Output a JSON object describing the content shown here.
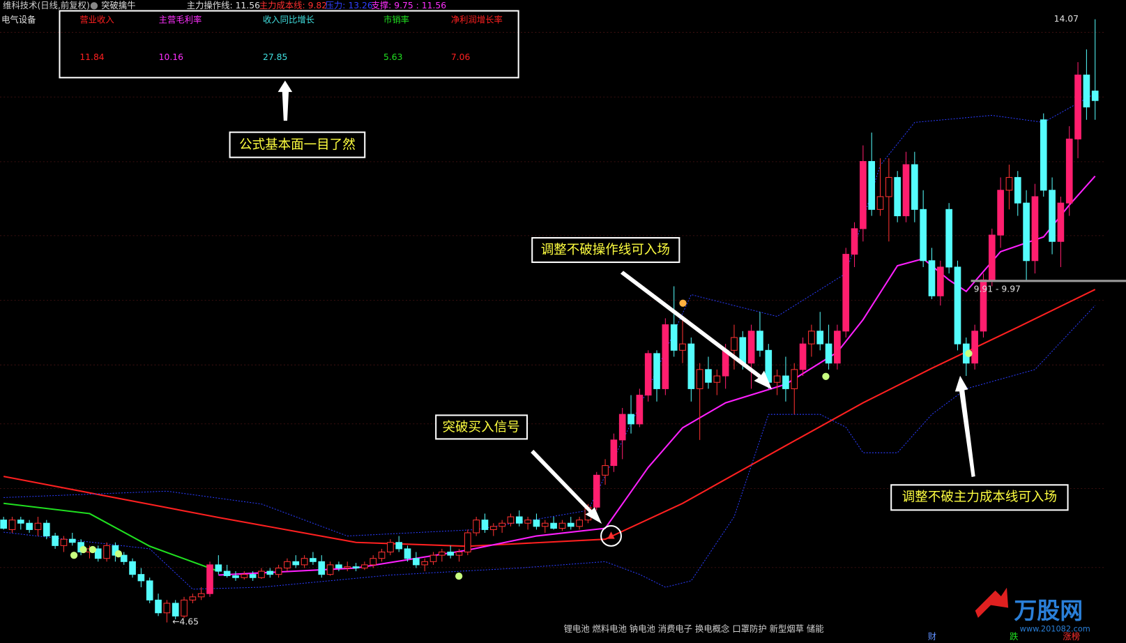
{
  "header": {
    "stock": "维科技术(日线,前复权)",
    "indicator": "突破擒牛",
    "op_line": "主力操作线: 11.56",
    "cost_line": "主力成本线: 9.82",
    "pressure": "压力: 13.26",
    "support": "支撑: 9.75 : 11.56",
    "sector": "电气设备"
  },
  "info_table": {
    "labels": [
      "营业收入",
      "主营毛利率",
      "收入同比增长",
      "市销率",
      "净利润增长率"
    ],
    "values": [
      "11.84",
      "10.16",
      "27.85",
      "5.63",
      "7.06"
    ]
  },
  "callouts": [
    "公式基本面一目了然",
    "调整不破操作线可入场",
    "突破买入信号",
    "调整不破主力成本线可入场"
  ],
  "range_label": "9.91 - 9.97",
  "concepts": "锂电池 燃料电池 钠电池 消费电子 换电概念 口罩防护 新型烟草 储能",
  "footer": {
    "a": "财",
    "b": "跌",
    "c": "涨榜",
    "watermark": "万股网",
    "url": "www.201082.com"
  },
  "chart_data": {
    "type": "candlestick",
    "ylim": [
      4.33,
      14.37
    ],
    "high_label": 14.07,
    "low_label": "←4.65",
    "up_color": "#ff3232",
    "up_fill": "#ff1e6e",
    "down_color": "#54fcfc",
    "candles": [
      [
        6.25,
        6.3,
        6.1,
        6.12
      ],
      [
        6.1,
        6.3,
        6.05,
        6.25
      ],
      [
        6.25,
        6.3,
        6.1,
        6.2
      ],
      [
        6.2,
        6.25,
        6.05,
        6.1
      ],
      [
        6.1,
        6.3,
        6.0,
        6.2
      ],
      [
        6.2,
        6.25,
        5.95,
        6.0
      ],
      [
        6.0,
        6.05,
        5.8,
        5.85
      ],
      [
        5.85,
        6.0,
        5.75,
        5.95
      ],
      [
        5.95,
        6.05,
        5.85,
        5.9
      ],
      [
        5.9,
        5.95,
        5.7,
        5.75
      ],
      [
        5.75,
        5.85,
        5.65,
        5.8
      ],
      [
        5.8,
        5.85,
        5.6,
        5.65
      ],
      [
        5.65,
        5.9,
        5.6,
        5.85
      ],
      [
        5.85,
        5.9,
        5.6,
        5.7
      ],
      [
        5.7,
        5.75,
        5.55,
        5.6
      ],
      [
        5.6,
        5.65,
        5.35,
        5.4
      ],
      [
        5.4,
        5.5,
        5.2,
        5.3
      ],
      [
        5.3,
        5.35,
        4.95,
        5.0
      ],
      [
        5.0,
        5.1,
        4.75,
        4.8
      ],
      [
        4.8,
        5.0,
        4.65,
        4.95
      ],
      [
        4.95,
        5.0,
        4.7,
        4.75
      ],
      [
        4.75,
        5.05,
        4.72,
        5.0
      ],
      [
        5.0,
        5.1,
        4.95,
        5.05
      ],
      [
        5.05,
        5.2,
        5.0,
        5.1
      ],
      [
        5.1,
        5.6,
        5.05,
        5.55
      ],
      [
        5.55,
        5.7,
        5.4,
        5.45
      ],
      [
        5.45,
        5.55,
        5.35,
        5.38
      ],
      [
        5.38,
        5.45,
        5.3,
        5.35
      ],
      [
        5.35,
        5.45,
        5.32,
        5.4
      ],
      [
        5.4,
        5.45,
        5.3,
        5.35
      ],
      [
        5.35,
        5.5,
        5.33,
        5.45
      ],
      [
        5.45,
        5.5,
        5.35,
        5.4
      ],
      [
        5.4,
        5.55,
        5.35,
        5.5
      ],
      [
        5.5,
        5.65,
        5.45,
        5.6
      ],
      [
        5.6,
        5.7,
        5.5,
        5.55
      ],
      [
        5.55,
        5.7,
        5.5,
        5.65
      ],
      [
        5.65,
        5.75,
        5.55,
        5.6
      ],
      [
        5.6,
        5.7,
        5.35,
        5.4
      ],
      [
        5.4,
        5.6,
        5.38,
        5.55
      ],
      [
        5.55,
        5.6,
        5.45,
        5.5
      ],
      [
        5.5,
        5.6,
        5.45,
        5.52
      ],
      [
        5.52,
        5.58,
        5.45,
        5.5
      ],
      [
        5.5,
        5.6,
        5.47,
        5.55
      ],
      [
        5.55,
        5.7,
        5.5,
        5.65
      ],
      [
        5.65,
        5.8,
        5.6,
        5.75
      ],
      [
        5.75,
        5.95,
        5.7,
        5.9
      ],
      [
        5.9,
        6.0,
        5.75,
        5.8
      ],
      [
        5.8,
        5.85,
        5.6,
        5.65
      ],
      [
        5.65,
        5.75,
        5.5,
        5.55
      ],
      [
        5.55,
        5.65,
        5.45,
        5.6
      ],
      [
        5.6,
        5.75,
        5.55,
        5.7
      ],
      [
        5.7,
        5.8,
        5.6,
        5.75
      ],
      [
        5.75,
        5.85,
        5.65,
        5.7
      ],
      [
        5.7,
        5.8,
        5.6,
        5.75
      ],
      [
        5.75,
        6.1,
        5.7,
        6.05
      ],
      [
        6.05,
        6.3,
        6.0,
        6.25
      ],
      [
        6.25,
        6.35,
        6.05,
        6.1
      ],
      [
        6.1,
        6.2,
        6.0,
        6.15
      ],
      [
        6.15,
        6.25,
        6.05,
        6.2
      ],
      [
        6.2,
        6.35,
        6.15,
        6.3
      ],
      [
        6.3,
        6.4,
        6.15,
        6.2
      ],
      [
        6.2,
        6.3,
        6.1,
        6.25
      ],
      [
        6.25,
        6.35,
        6.1,
        6.15
      ],
      [
        6.15,
        6.25,
        6.05,
        6.2
      ],
      [
        6.2,
        6.3,
        6.1,
        6.12
      ],
      [
        6.12,
        6.25,
        6.08,
        6.2
      ],
      [
        6.2,
        6.3,
        6.1,
        6.15
      ],
      [
        6.15,
        6.3,
        6.1,
        6.25
      ],
      [
        6.25,
        6.5,
        6.2,
        6.45
      ],
      [
        6.45,
        7.0,
        6.4,
        6.95
      ],
      [
        6.95,
        7.2,
        6.8,
        7.1
      ],
      [
        7.1,
        7.6,
        7.0,
        7.5
      ],
      [
        7.5,
        8.0,
        7.2,
        7.9
      ],
      [
        7.9,
        8.2,
        7.6,
        7.75
      ],
      [
        7.75,
        8.3,
        7.7,
        8.2
      ],
      [
        8.2,
        8.9,
        8.1,
        8.85
      ],
      [
        8.85,
        8.9,
        8.1,
        8.3
      ],
      [
        8.3,
        9.4,
        8.2,
        9.3
      ],
      [
        9.3,
        9.9,
        8.8,
        8.9
      ],
      [
        8.9,
        9.4,
        8.7,
        9.0
      ],
      [
        9.0,
        9.1,
        8.1,
        8.3
      ],
      [
        8.3,
        8.7,
        7.5,
        8.6
      ],
      [
        8.6,
        8.8,
        8.3,
        8.4
      ],
      [
        8.4,
        8.6,
        8.2,
        8.5
      ],
      [
        8.5,
        9.0,
        8.3,
        8.9
      ],
      [
        8.9,
        9.3,
        8.6,
        9.1
      ],
      [
        9.1,
        9.2,
        8.6,
        8.7
      ],
      [
        8.7,
        9.3,
        8.3,
        9.2
      ],
      [
        9.2,
        9.5,
        8.8,
        8.9
      ],
      [
        8.9,
        9.0,
        8.3,
        8.4
      ],
      [
        8.4,
        8.6,
        8.2,
        8.5
      ],
      [
        8.5,
        8.8,
        8.1,
        8.3
      ],
      [
        8.3,
        8.7,
        7.9,
        8.6
      ],
      [
        8.6,
        9.1,
        8.5,
        9.0
      ],
      [
        9.0,
        9.3,
        8.8,
        9.2
      ],
      [
        9.2,
        9.5,
        8.9,
        9.0
      ],
      [
        9.0,
        9.3,
        8.6,
        8.7
      ],
      [
        8.7,
        9.3,
        8.6,
        9.2
      ],
      [
        9.2,
        10.5,
        9.1,
        10.4
      ],
      [
        10.4,
        10.9,
        10.2,
        10.8
      ],
      [
        10.8,
        12.1,
        10.6,
        11.85
      ],
      [
        11.85,
        12.3,
        11.0,
        11.1
      ],
      [
        11.1,
        11.9,
        11.0,
        11.3
      ],
      [
        11.3,
        11.9,
        10.6,
        11.6
      ],
      [
        11.6,
        11.7,
        10.9,
        11.0
      ],
      [
        11.0,
        12.0,
        10.9,
        11.8
      ],
      [
        11.8,
        12.0,
        10.9,
        11.1
      ],
      [
        11.1,
        11.4,
        10.2,
        10.3
      ],
      [
        10.3,
        10.5,
        9.7,
        9.75
      ],
      [
        9.75,
        10.3,
        9.6,
        10.2
      ],
      [
        11.1,
        11.2,
        10.1,
        10.2
      ],
      [
        10.2,
        10.3,
        8.9,
        9.0
      ],
      [
        9.0,
        9.1,
        8.5,
        8.7
      ],
      [
        8.7,
        9.3,
        8.6,
        9.2
      ],
      [
        9.2,
        10.1,
        9.1,
        10.0
      ],
      [
        10.0,
        10.8,
        9.9,
        10.7
      ],
      [
        10.7,
        11.6,
        10.5,
        11.4
      ],
      [
        11.4,
        11.8,
        11.1,
        11.6
      ],
      [
        11.6,
        11.7,
        11.0,
        11.2
      ],
      [
        11.2,
        11.4,
        10.0,
        10.3
      ],
      [
        10.3,
        11.5,
        10.1,
        11.3
      ],
      [
        12.5,
        12.6,
        11.3,
        11.4
      ],
      [
        11.4,
        11.6,
        10.4,
        10.6
      ],
      [
        10.6,
        11.3,
        10.2,
        11.2
      ],
      [
        11.2,
        12.4,
        11.0,
        12.2
      ],
      [
        12.2,
        13.4,
        11.9,
        13.2
      ],
      [
        13.2,
        13.6,
        12.5,
        12.7
      ],
      [
        12.95,
        14.07,
        12.5,
        12.8
      ]
    ],
    "lines": [
      {
        "name": "cost",
        "color": "#ff2020",
        "width": 2,
        "x": [
          0,
          25,
          41,
          54,
          70,
          79,
          91,
          100,
          108,
          118,
          127
        ],
        "values": [
          6.93,
          6.29,
          5.9,
          5.84,
          5.95,
          6.51,
          7.41,
          8.08,
          8.62,
          9.26,
          9.85
        ]
      },
      {
        "name": "op",
        "color": "#ff20ff",
        "width": 2,
        "x": [
          25,
          41,
          54,
          62,
          70,
          75,
          79,
          84,
          91,
          97,
          100,
          104,
          107,
          110,
          112,
          116,
          121,
          124,
          127
        ],
        "values": [
          5.39,
          5.5,
          5.78,
          6.0,
          6.12,
          7.07,
          7.69,
          8.08,
          8.37,
          8.87,
          9.38,
          10.22,
          10.33,
          10.0,
          9.82,
          10.44,
          10.67,
          11.17,
          11.62
        ]
      },
      {
        "name": "trend",
        "color": "#20e020",
        "width": 2,
        "x": [
          0,
          10,
          17,
          25
        ],
        "values": [
          6.51,
          6.35,
          5.84,
          5.45
        ]
      },
      {
        "name": "upper",
        "color": "#2a3cff",
        "width": 1,
        "dash": true,
        "x": [
          0,
          19,
          30,
          40,
          55,
          68,
          75,
          80,
          90,
          98,
          102,
          106,
          115,
          121,
          127
        ],
        "values": [
          6.6,
          6.7,
          6.5,
          6.0,
          6.1,
          6.4,
          8.3,
          9.77,
          9.43,
          10.1,
          11.79,
          12.46,
          12.57,
          12.46,
          12.91
        ]
      },
      {
        "name": "lower",
        "color": "#2a3cff",
        "width": 1,
        "dash": true,
        "x": [
          0,
          17,
          22,
          30,
          45,
          60,
          70,
          74,
          77,
          80,
          85,
          89,
          95,
          98,
          100,
          104,
          108,
          112,
          120,
          127
        ],
        "values": [
          6.06,
          5.8,
          5.17,
          5.2,
          5.39,
          5.5,
          5.6,
          5.4,
          5.2,
          5.3,
          6.3,
          7.9,
          7.9,
          7.7,
          7.3,
          7.3,
          7.9,
          8.3,
          8.6,
          9.6
        ]
      }
    ]
  }
}
